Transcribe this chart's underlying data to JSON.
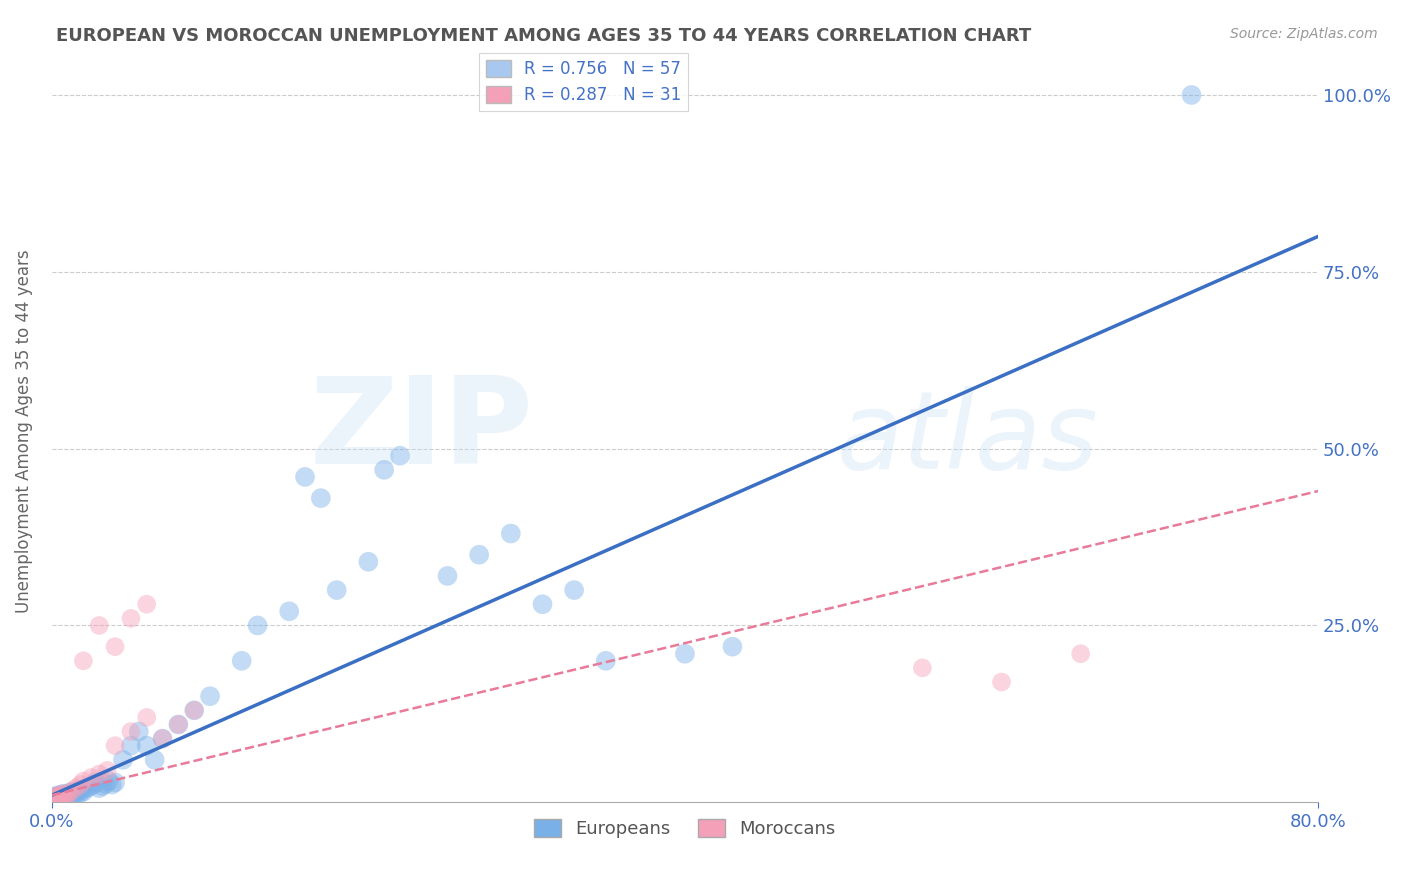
{
  "title": "EUROPEAN VS MOROCCAN UNEMPLOYMENT AMONG AGES 35 TO 44 YEARS CORRELATION CHART",
  "source": "Source: ZipAtlas.com",
  "ylabel": "Unemployment Among Ages 35 to 44 years",
  "xlim": [
    0.0,
    0.8
  ],
  "ylim": [
    0.0,
    1.05
  ],
  "yticks": [
    0.0,
    0.25,
    0.5,
    0.75,
    1.0
  ],
  "ytick_labels": [
    "",
    "25.0%",
    "50.0%",
    "75.0%",
    "100.0%"
  ],
  "xtick_labels": [
    "0.0%",
    "80.0%"
  ],
  "xtick_positions": [
    0.0,
    0.8
  ],
  "legend_entries": [
    {
      "label": "R = 0.756   N = 57",
      "color": "#a8c8f0"
    },
    {
      "label": "R = 0.287   N = 31",
      "color": "#f4a0b8"
    }
  ],
  "blue_line": {
    "x0": 0.0,
    "y0": 0.01,
    "x1": 0.8,
    "y1": 0.8,
    "color": "#3a6fc4",
    "lw": 2.5
  },
  "pink_line": {
    "x0": 0.0,
    "y0": 0.01,
    "x1": 0.8,
    "y1": 0.44,
    "color": "#e87a9a",
    "lw": 1.8
  },
  "europeans_x": [
    0.001,
    0.002,
    0.003,
    0.004,
    0.005,
    0.006,
    0.007,
    0.008,
    0.009,
    0.01,
    0.011,
    0.012,
    0.013,
    0.014,
    0.015,
    0.016,
    0.017,
    0.018,
    0.019,
    0.02,
    0.022,
    0.024,
    0.026,
    0.028,
    0.03,
    0.032,
    0.034,
    0.036,
    0.038,
    0.04,
    0.045,
    0.05,
    0.055,
    0.06,
    0.065,
    0.07,
    0.08,
    0.09,
    0.1,
    0.12,
    0.13,
    0.15,
    0.16,
    0.17,
    0.18,
    0.2,
    0.21,
    0.22,
    0.25,
    0.27,
    0.29,
    0.31,
    0.33,
    0.35,
    0.4,
    0.43,
    0.72
  ],
  "europeans_y": [
    0.005,
    0.008,
    0.006,
    0.01,
    0.007,
    0.009,
    0.012,
    0.008,
    0.011,
    0.01,
    0.013,
    0.009,
    0.015,
    0.011,
    0.014,
    0.012,
    0.016,
    0.013,
    0.018,
    0.015,
    0.02,
    0.022,
    0.025,
    0.028,
    0.02,
    0.023,
    0.026,
    0.03,
    0.025,
    0.028,
    0.06,
    0.08,
    0.1,
    0.08,
    0.06,
    0.09,
    0.11,
    0.13,
    0.15,
    0.2,
    0.25,
    0.27,
    0.46,
    0.43,
    0.3,
    0.34,
    0.47,
    0.49,
    0.32,
    0.35,
    0.38,
    0.28,
    0.3,
    0.2,
    0.21,
    0.22,
    1.0
  ],
  "moroccans_x": [
    0.001,
    0.002,
    0.003,
    0.004,
    0.005,
    0.006,
    0.007,
    0.008,
    0.009,
    0.01,
    0.012,
    0.015,
    0.018,
    0.02,
    0.025,
    0.03,
    0.035,
    0.04,
    0.05,
    0.06,
    0.07,
    0.08,
    0.09,
    0.02,
    0.03,
    0.04,
    0.05,
    0.06,
    0.6,
    0.55,
    0.65
  ],
  "moroccans_y": [
    0.005,
    0.008,
    0.006,
    0.01,
    0.007,
    0.009,
    0.012,
    0.008,
    0.011,
    0.01,
    0.015,
    0.02,
    0.025,
    0.03,
    0.035,
    0.04,
    0.045,
    0.08,
    0.1,
    0.12,
    0.09,
    0.11,
    0.13,
    0.2,
    0.25,
    0.22,
    0.26,
    0.28,
    0.17,
    0.19,
    0.21
  ],
  "dot_size_blue": 200,
  "dot_size_pink": 180,
  "dot_alpha_blue": 0.45,
  "dot_alpha_pink": 0.45,
  "dot_color_blue": "#7ab0e8",
  "dot_color_pink": "#f4a0b8",
  "bg_color": "#ffffff",
  "grid_color": "#cccccc",
  "title_color": "#555555",
  "axis_label_color": "#4472c4",
  "watermark_color": "#c8dff5",
  "watermark_alpha": 0.35
}
